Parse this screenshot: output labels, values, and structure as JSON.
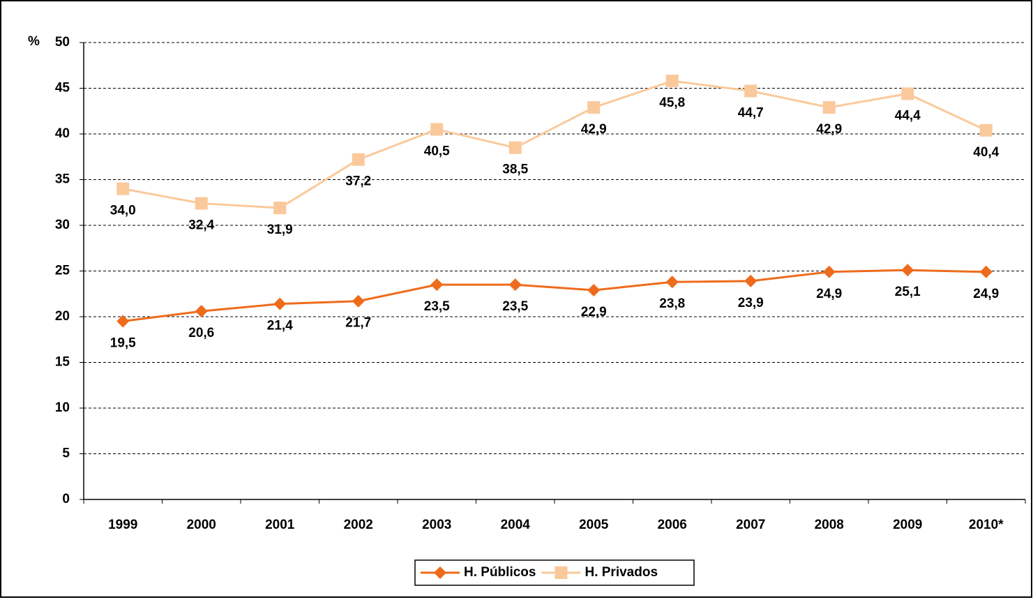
{
  "chart_data": {
    "type": "line",
    "y_label": "%",
    "categories": [
      "1999",
      "2000",
      "2001",
      "2002",
      "2003",
      "2004",
      "2005",
      "2006",
      "2007",
      "2008",
      "2009",
      "2010*"
    ],
    "series": [
      {
        "name": "H. Públicos",
        "color": "#ee6b1c",
        "marker": "diamond",
        "values": [
          19.5,
          20.6,
          21.4,
          21.7,
          23.5,
          23.5,
          22.9,
          23.8,
          23.9,
          24.9,
          25.1,
          24.9
        ],
        "value_labels": [
          "19,5",
          "20,6",
          "21,4",
          "21,7",
          "23,5",
          "23,5",
          "22,9",
          "23,8",
          "23,9",
          "24,9",
          "25,1",
          "24,9"
        ]
      },
      {
        "name": "H. Privados",
        "color": "#fac99b",
        "marker": "square",
        "values": [
          34.0,
          32.4,
          31.9,
          37.2,
          40.5,
          38.5,
          42.9,
          45.8,
          44.7,
          42.9,
          44.4,
          40.4
        ],
        "value_labels": [
          "34,0",
          "32,4",
          "31,9",
          "37,2",
          "40,5",
          "38,5",
          "42,9",
          "45,8",
          "44,7",
          "42,9",
          "44,4",
          "40,4"
        ]
      }
    ],
    "ylim": [
      0,
      50
    ],
    "yticks": [
      0,
      5,
      10,
      15,
      20,
      25,
      30,
      35,
      40,
      45,
      50
    ],
    "grid": true,
    "legend": "bottom"
  }
}
